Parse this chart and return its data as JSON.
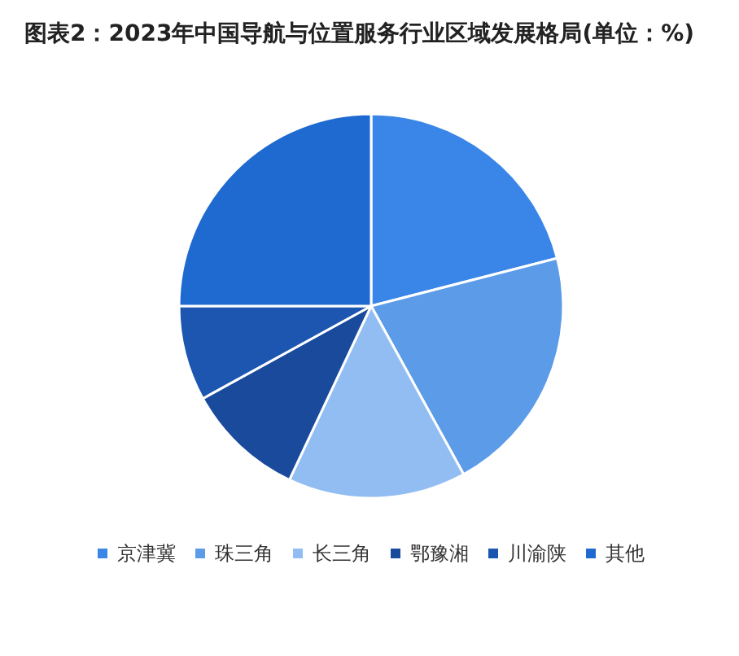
{
  "chart_data": {
    "type": "pie",
    "title": "图表2：2023年中国导航与位置服务行业区域发展格局(单位：%)",
    "categories": [
      "京津冀",
      "珠三角",
      "长三角",
      "鄂豫湘",
      "川渝陕",
      "其他"
    ],
    "values": [
      21,
      21,
      15,
      10,
      8,
      25
    ],
    "colors": [
      "#3a86e8",
      "#5b9be8",
      "#92bdf3",
      "#1a4a9c",
      "#1d56b0",
      "#1f6ad0"
    ],
    "legend": "bottom"
  }
}
